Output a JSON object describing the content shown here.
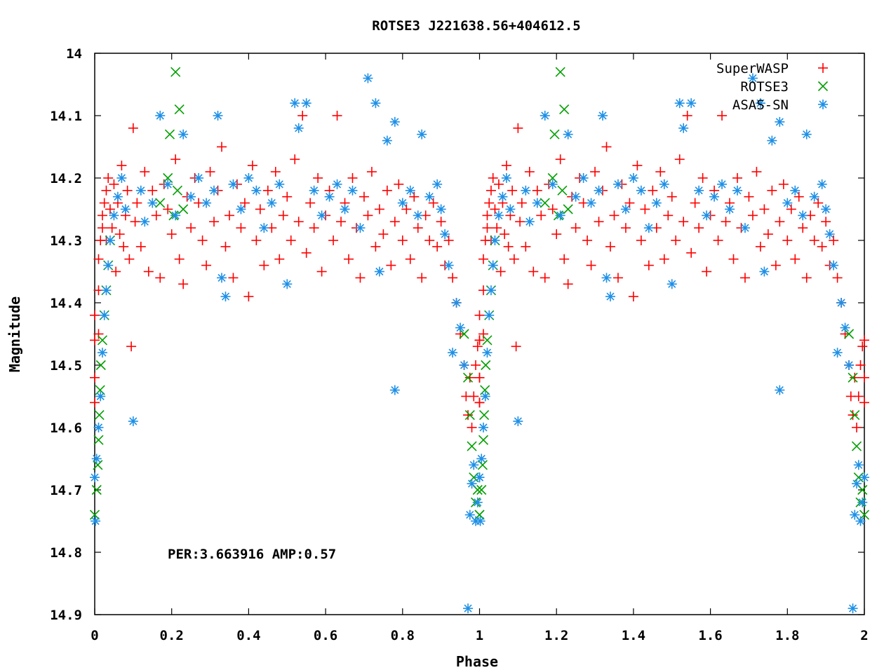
{
  "chart_data": {
    "type": "scatter",
    "title": "ROTSE3 J221638.56+404612.5",
    "xlabel": "Phase",
    "ylabel": "Magnitude",
    "xlim": [
      0,
      2
    ],
    "ylim": [
      14.9,
      14.0
    ],
    "y_inverted": true,
    "x_ticks": [
      0,
      0.2,
      0.4,
      0.6,
      0.8,
      1,
      1.2,
      1.4,
      1.6,
      1.8,
      2
    ],
    "x_tick_labels": [
      "0",
      "0.2",
      "0.4",
      "0.6",
      "0.8",
      "1",
      "1.2",
      "1.4",
      "1.6",
      "1.8",
      "2"
    ],
    "y_ticks": [
      14.0,
      14.1,
      14.2,
      14.3,
      14.4,
      14.5,
      14.6,
      14.7,
      14.8,
      14.9
    ],
    "y_tick_labels": [
      "14",
      "14.1",
      "14.2",
      "14.3",
      "14.4",
      "14.5",
      "14.6",
      "14.7",
      "14.8",
      "14.9"
    ],
    "grid": false,
    "legend_position": "top-right",
    "annotation": "PER:3.663916 AMP:0.57",
    "period_repeat": 1,
    "series": [
      {
        "name": "SuperWASP",
        "marker": "plus",
        "color": "#ff0000",
        "points": [
          [
            0.0,
            14.52
          ],
          [
            0.0,
            14.56
          ],
          [
            0.0,
            14.46
          ],
          [
            0.0,
            14.42
          ],
          [
            0.01,
            14.45
          ],
          [
            0.01,
            14.38
          ],
          [
            0.01,
            14.33
          ],
          [
            0.015,
            14.3
          ],
          [
            0.02,
            14.28
          ],
          [
            0.02,
            14.26
          ],
          [
            0.025,
            14.24
          ],
          [
            0.03,
            14.22
          ],
          [
            0.03,
            14.3
          ],
          [
            0.035,
            14.2
          ],
          [
            0.04,
            14.25
          ],
          [
            0.045,
            14.28
          ],
          [
            0.05,
            14.21
          ],
          [
            0.055,
            14.35
          ],
          [
            0.06,
            14.24
          ],
          [
            0.065,
            14.29
          ],
          [
            0.07,
            14.18
          ],
          [
            0.075,
            14.31
          ],
          [
            0.08,
            14.26
          ],
          [
            0.085,
            14.22
          ],
          [
            0.09,
            14.33
          ],
          [
            0.095,
            14.47
          ],
          [
            0.1,
            14.12
          ],
          [
            0.105,
            14.27
          ],
          [
            0.11,
            14.24
          ],
          [
            0.12,
            14.31
          ],
          [
            0.13,
            14.19
          ],
          [
            0.14,
            14.35
          ],
          [
            0.15,
            14.22
          ],
          [
            0.16,
            14.26
          ],
          [
            0.17,
            14.36
          ],
          [
            0.18,
            14.21
          ],
          [
            0.19,
            14.25
          ],
          [
            0.2,
            14.29
          ],
          [
            0.21,
            14.17
          ],
          [
            0.22,
            14.33
          ],
          [
            0.23,
            14.37
          ],
          [
            0.24,
            14.23
          ],
          [
            0.25,
            14.28
          ],
          [
            0.26,
            14.2
          ],
          [
            0.27,
            14.24
          ],
          [
            0.28,
            14.3
          ],
          [
            0.29,
            14.34
          ],
          [
            0.3,
            14.19
          ],
          [
            0.31,
            14.27
          ],
          [
            0.32,
            14.22
          ],
          [
            0.33,
            14.15
          ],
          [
            0.34,
            14.31
          ],
          [
            0.35,
            14.26
          ],
          [
            0.36,
            14.36
          ],
          [
            0.37,
            14.21
          ],
          [
            0.38,
            14.28
          ],
          [
            0.39,
            14.24
          ],
          [
            0.4,
            14.39
          ],
          [
            0.41,
            14.18
          ],
          [
            0.42,
            14.3
          ],
          [
            0.43,
            14.25
          ],
          [
            0.44,
            14.34
          ],
          [
            0.45,
            14.22
          ],
          [
            0.46,
            14.28
          ],
          [
            0.47,
            14.19
          ],
          [
            0.48,
            14.33
          ],
          [
            0.49,
            14.26
          ],
          [
            0.5,
            14.23
          ],
          [
            0.51,
            14.3
          ],
          [
            0.52,
            14.17
          ],
          [
            0.53,
            14.27
          ],
          [
            0.54,
            14.1
          ],
          [
            0.55,
            14.32
          ],
          [
            0.56,
            14.24
          ],
          [
            0.57,
            14.28
          ],
          [
            0.58,
            14.2
          ],
          [
            0.59,
            14.35
          ],
          [
            0.6,
            14.26
          ],
          [
            0.61,
            14.22
          ],
          [
            0.62,
            14.3
          ],
          [
            0.63,
            14.1
          ],
          [
            0.64,
            14.27
          ],
          [
            0.65,
            14.24
          ],
          [
            0.66,
            14.33
          ],
          [
            0.67,
            14.2
          ],
          [
            0.68,
            14.28
          ],
          [
            0.69,
            14.36
          ],
          [
            0.7,
            14.23
          ],
          [
            0.71,
            14.26
          ],
          [
            0.72,
            14.19
          ],
          [
            0.73,
            14.31
          ],
          [
            0.74,
            14.25
          ],
          [
            0.75,
            14.29
          ],
          [
            0.76,
            14.22
          ],
          [
            0.77,
            14.34
          ],
          [
            0.78,
            14.27
          ],
          [
            0.79,
            14.21
          ],
          [
            0.8,
            14.3
          ],
          [
            0.81,
            14.25
          ],
          [
            0.82,
            14.33
          ],
          [
            0.83,
            14.23
          ],
          [
            0.84,
            14.28
          ],
          [
            0.85,
            14.36
          ],
          [
            0.86,
            14.26
          ],
          [
            0.87,
            14.3
          ],
          [
            0.88,
            14.24
          ],
          [
            0.89,
            14.31
          ],
          [
            0.9,
            14.27
          ],
          [
            0.91,
            14.34
          ],
          [
            0.92,
            14.3
          ],
          [
            0.93,
            14.36
          ],
          [
            0.94,
            14.4
          ],
          [
            0.95,
            14.45
          ],
          [
            0.96,
            14.5
          ],
          [
            0.965,
            14.55
          ],
          [
            0.97,
            14.58
          ],
          [
            0.975,
            14.52
          ],
          [
            0.98,
            14.6
          ],
          [
            0.985,
            14.55
          ],
          [
            0.99,
            14.5
          ],
          [
            0.995,
            14.47
          ],
          [
            1.0,
            14.52
          ],
          [
            1.0,
            14.56
          ],
          [
            1.0,
            14.46
          ]
        ]
      },
      {
        "name": "ROTSE3",
        "marker": "cross",
        "color": "#00a000",
        "points": [
          [
            0.0,
            14.74
          ],
          [
            0.005,
            14.7
          ],
          [
            0.008,
            14.66
          ],
          [
            0.01,
            14.62
          ],
          [
            0.012,
            14.58
          ],
          [
            0.014,
            14.54
          ],
          [
            0.016,
            14.5
          ],
          [
            0.02,
            14.46
          ],
          [
            0.025,
            14.42
          ],
          [
            0.03,
            14.38
          ],
          [
            0.035,
            14.34
          ],
          [
            0.04,
            14.3
          ],
          [
            0.17,
            14.24
          ],
          [
            0.19,
            14.2
          ],
          [
            0.195,
            14.13
          ],
          [
            0.205,
            14.26
          ],
          [
            0.21,
            14.03
          ],
          [
            0.215,
            14.22
          ],
          [
            0.22,
            14.09
          ],
          [
            0.23,
            14.25
          ],
          [
            0.96,
            14.45
          ],
          [
            0.97,
            14.52
          ],
          [
            0.975,
            14.58
          ],
          [
            0.98,
            14.63
          ],
          [
            0.985,
            14.68
          ],
          [
            0.99,
            14.72
          ],
          [
            0.995,
            14.7
          ],
          [
            1.0,
            14.74
          ]
        ]
      },
      {
        "name": "ASAS-SN",
        "marker": "star",
        "color": "#1e90e6",
        "points": [
          [
            0.0,
            14.68
          ],
          [
            0.002,
            14.75
          ],
          [
            0.005,
            14.65
          ],
          [
            0.01,
            14.6
          ],
          [
            0.015,
            14.55
          ],
          [
            0.02,
            14.48
          ],
          [
            0.025,
            14.42
          ],
          [
            0.03,
            14.38
          ],
          [
            0.035,
            14.34
          ],
          [
            0.04,
            14.3
          ],
          [
            0.05,
            14.26
          ],
          [
            0.06,
            14.23
          ],
          [
            0.07,
            14.2
          ],
          [
            0.08,
            14.25
          ],
          [
            0.1,
            14.59
          ],
          [
            0.12,
            14.22
          ],
          [
            0.13,
            14.27
          ],
          [
            0.15,
            14.24
          ],
          [
            0.17,
            14.1
          ],
          [
            0.19,
            14.21
          ],
          [
            0.21,
            14.26
          ],
          [
            0.23,
            14.13
          ],
          [
            0.25,
            14.23
          ],
          [
            0.27,
            14.2
          ],
          [
            0.29,
            14.24
          ],
          [
            0.31,
            14.22
          ],
          [
            0.32,
            14.1
          ],
          [
            0.33,
            14.36
          ],
          [
            0.34,
            14.39
          ],
          [
            0.36,
            14.21
          ],
          [
            0.38,
            14.25
          ],
          [
            0.4,
            14.2
          ],
          [
            0.42,
            14.22
          ],
          [
            0.44,
            14.28
          ],
          [
            0.46,
            14.24
          ],
          [
            0.48,
            14.21
          ],
          [
            0.5,
            14.37
          ],
          [
            0.52,
            14.08
          ],
          [
            0.53,
            14.12
          ],
          [
            0.55,
            14.08
          ],
          [
            0.57,
            14.22
          ],
          [
            0.59,
            14.26
          ],
          [
            0.61,
            14.23
          ],
          [
            0.63,
            14.21
          ],
          [
            0.65,
            14.25
          ],
          [
            0.67,
            14.22
          ],
          [
            0.69,
            14.28
          ],
          [
            0.71,
            14.04
          ],
          [
            0.73,
            14.08
          ],
          [
            0.74,
            14.35
          ],
          [
            0.76,
            14.14
          ],
          [
            0.78,
            14.11
          ],
          [
            0.78,
            14.54
          ],
          [
            0.8,
            14.24
          ],
          [
            0.82,
            14.22
          ],
          [
            0.84,
            14.26
          ],
          [
            0.85,
            14.13
          ],
          [
            0.87,
            14.23
          ],
          [
            0.89,
            14.21
          ],
          [
            0.9,
            14.25
          ],
          [
            0.91,
            14.29
          ],
          [
            0.92,
            14.34
          ],
          [
            0.93,
            14.48
          ],
          [
            0.94,
            14.4
          ],
          [
            0.95,
            14.44
          ],
          [
            0.96,
            14.5
          ],
          [
            0.97,
            14.89
          ],
          [
            0.975,
            14.74
          ],
          [
            0.98,
            14.69
          ],
          [
            0.985,
            14.66
          ],
          [
            0.99,
            14.75
          ],
          [
            0.995,
            14.72
          ],
          [
            1.0,
            14.68
          ]
        ]
      }
    ]
  }
}
